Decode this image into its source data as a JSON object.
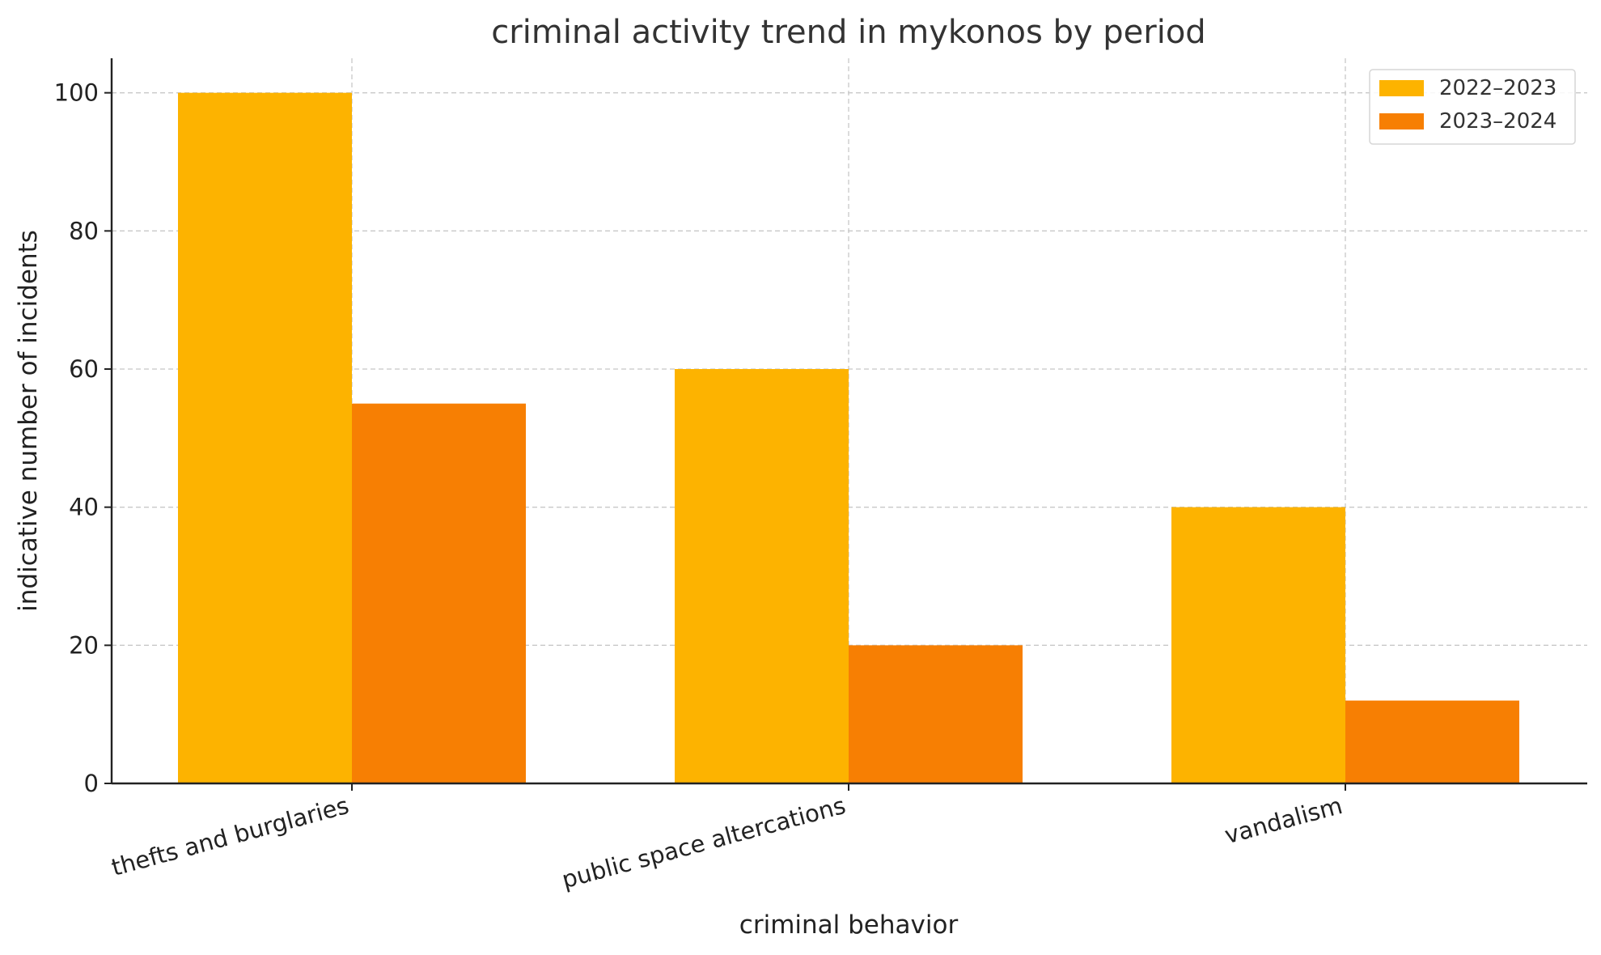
{
  "chart_data": {
    "type": "bar",
    "title": "criminal activity trend in mykonos by period",
    "xlabel": "criminal behavior",
    "ylabel": "indicative number of incidents",
    "categories": [
      "thefts and burglaries",
      "public space altercations",
      "vandalism"
    ],
    "series": [
      {
        "name": "2022–2023",
        "values": [
          100,
          60,
          40
        ],
        "color": "#FDB300"
      },
      {
        "name": "2023–2024",
        "values": [
          55,
          20,
          12
        ],
        "color": "#F77F03"
      }
    ],
    "ylim": [
      0,
      105
    ],
    "yticks": [
      0,
      20,
      40,
      60,
      80,
      100
    ],
    "grid": true,
    "legend_position": "top-right"
  }
}
